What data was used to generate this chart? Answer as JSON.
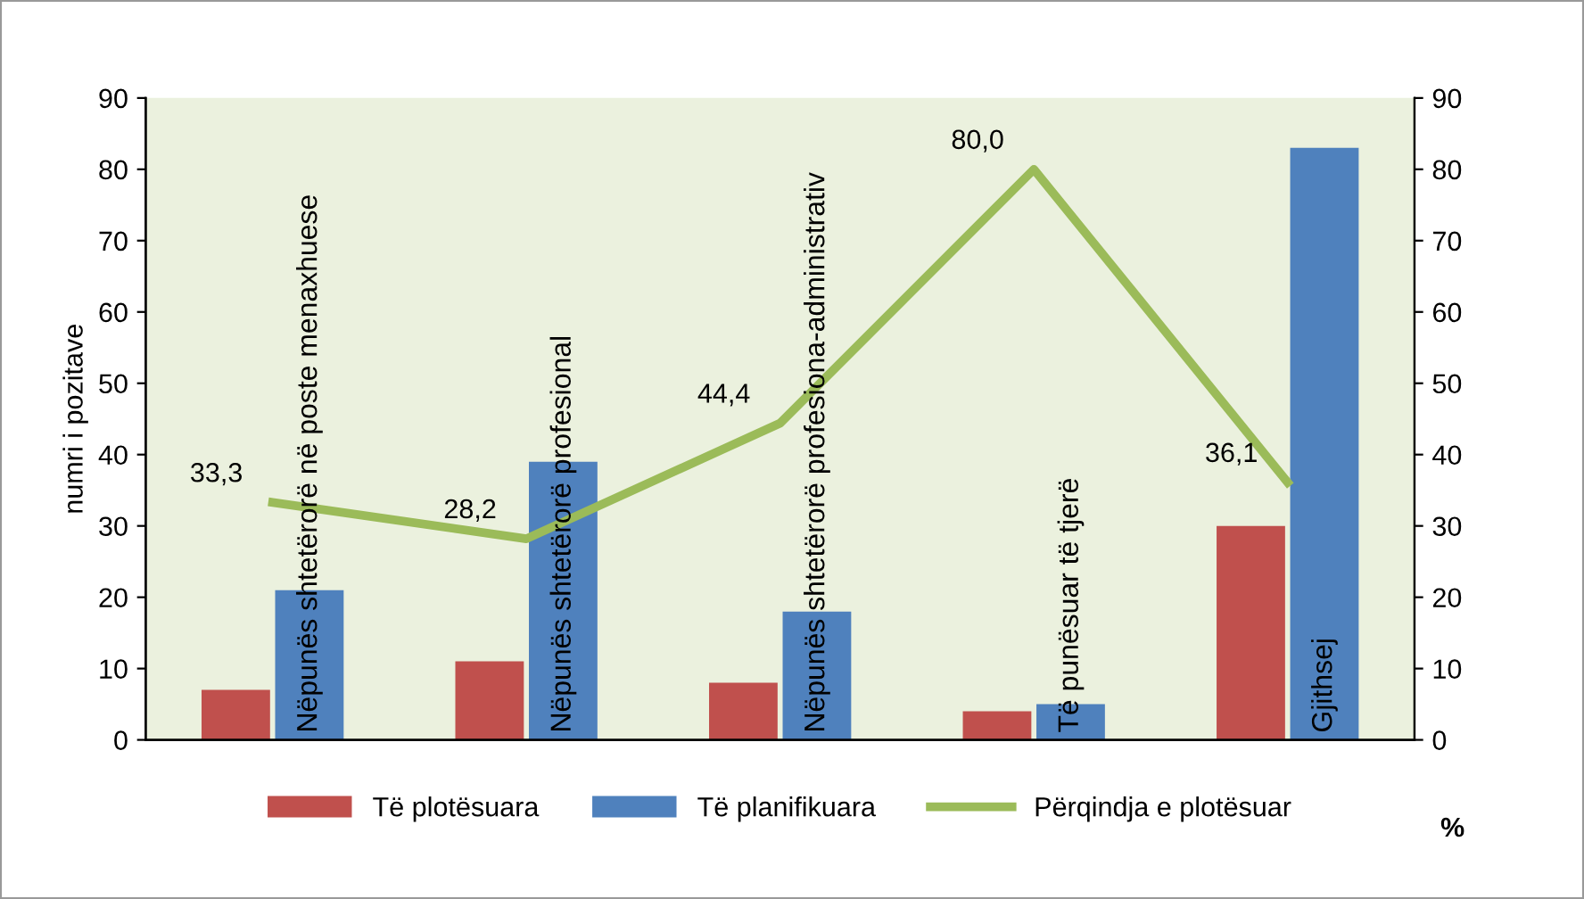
{
  "chart_data": {
    "type": "bar",
    "ylabel": "numri i pozitave",
    "y2label": "%",
    "categories": [
      "Nëpunës shtetërorë në poste menaxhuese",
      "Nëpunës shtetërorë profesional",
      "Nëpunës shtetërorë profesiona-administrativ",
      "Të punësuar të tjerë",
      "Gjithsej"
    ],
    "series": [
      {
        "name": "Të plotësuara",
        "color": "#c0504d",
        "values": [
          7,
          11,
          8,
          4,
          30
        ]
      },
      {
        "name": "Të planifikuara",
        "color": "#4f81bd",
        "values": [
          21,
          39,
          18,
          5,
          83
        ]
      },
      {
        "name": "Përqindja e plotësuar",
        "type": "line",
        "axis": "y2",
        "color": "#9bbb59",
        "values": [
          33.3,
          28.2,
          44.4,
          80.0,
          36.1
        ],
        "value_labels": [
          "33,3",
          "28,2",
          "44,4",
          "80,0",
          "36,1"
        ]
      }
    ],
    "ylim": [
      0,
      90
    ],
    "yticks": [
      0,
      10,
      20,
      30,
      40,
      50,
      60,
      70,
      80,
      90
    ],
    "y2lim": [
      0,
      90
    ],
    "y2ticks": [
      0,
      10,
      20,
      30,
      40,
      50,
      60,
      70,
      80,
      90
    ],
    "grid": false,
    "legend": "bottom",
    "marker": "none"
  }
}
